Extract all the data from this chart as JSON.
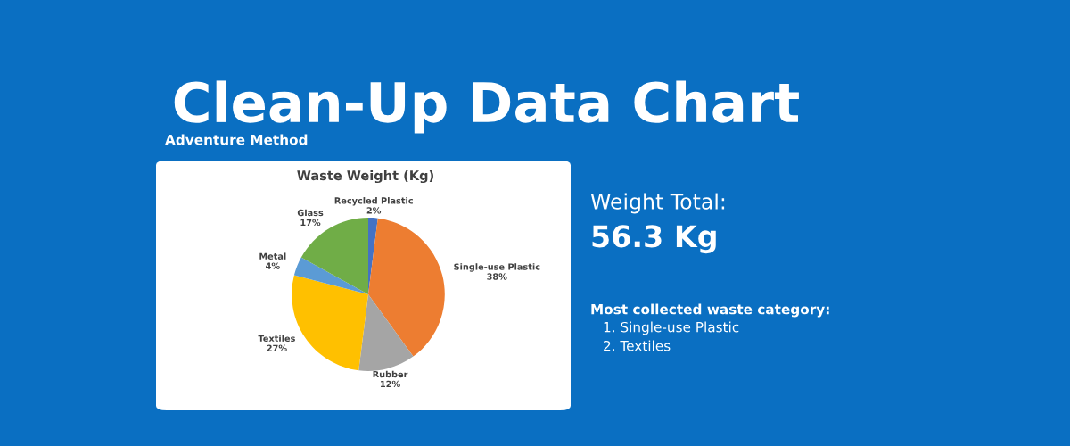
{
  "chart_data": {
    "type": "pie",
    "title": "Clean-Up Data Chart",
    "subtitle": "Adventure Method",
    "categories": [
      "Recycled Plastic",
      "Single-use Plastic",
      "Rubber",
      "Textiles",
      "Metal",
      "Glass"
    ],
    "values": [
      2,
      38,
      12,
      27,
      4,
      17
    ],
    "value_labels": [
      "2%",
      "38%",
      "12%",
      "27%",
      "4%",
      "17%"
    ],
    "colors": [
      "#4472c4",
      "#ed7d31",
      "#a5a5a5",
      "#ffc000",
      "#5b9bd5",
      "#70ad47"
    ],
    "annotations": [
      "Waste Weight (Kg)",
      "Weight Total:",
      "56.3 Kg",
      "Most collected waste category:",
      "1. Single-use Plastic",
      "2. Textiles"
    ],
    "legend": false
  }
}
